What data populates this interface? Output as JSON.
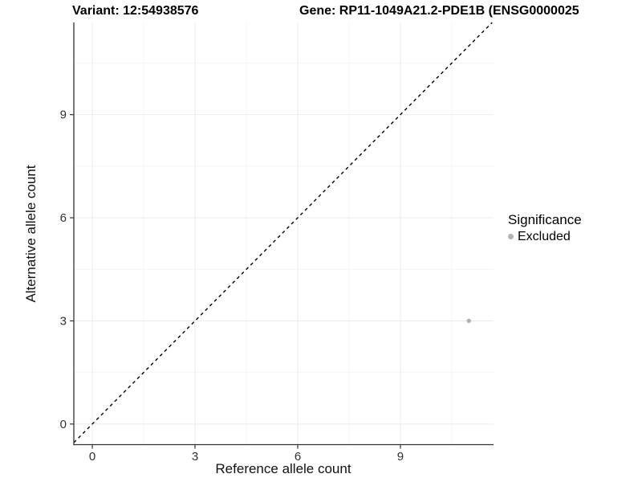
{
  "figure": {
    "title_left": "Variant: 12:54938576",
    "title_right": "Gene: RP11-1049A21.2-PDE1B (ENSG0000025",
    "xlabel": "Reference allele count",
    "ylabel": "Alternative allele count"
  },
  "legend": {
    "title": "Significance",
    "items": [
      {
        "label": "Excluded",
        "color": "#b3b3b3"
      }
    ]
  },
  "chart_data": {
    "type": "scatter",
    "title": "Variant: 12:54938576",
    "subtitle": "Gene: RP11-1049A21.2-PDE1B (ENSG0000025",
    "xlabel": "Reference allele count",
    "ylabel": "Alternative allele count",
    "x_ticks": [
      0,
      3,
      6,
      9
    ],
    "y_ticks": [
      0,
      3,
      6,
      9
    ],
    "x_minor_ticks": [
      1.5,
      4.5,
      7.5,
      10.5
    ],
    "y_minor_ticks": [
      1.5,
      4.5,
      7.5,
      10.5
    ],
    "xlim": [
      -0.54,
      11.72
    ],
    "ylim": [
      -0.6,
      11.68
    ],
    "grid": true,
    "legend_position": "right",
    "series": [
      {
        "name": "Excluded",
        "color": "#b3b3b3",
        "points": [
          {
            "x": 11,
            "y": 3
          }
        ]
      }
    ],
    "reference_line": {
      "slope": 1,
      "intercept": 0,
      "style": "dashed",
      "color": "#000000"
    }
  },
  "colors": {
    "background": "#ffffff",
    "grid_major": "#ebebeb",
    "grid_minor": "#f4f4f4",
    "axis_line": "#333333",
    "tick_text": "#303030",
    "point": "#b3b3b3"
  }
}
